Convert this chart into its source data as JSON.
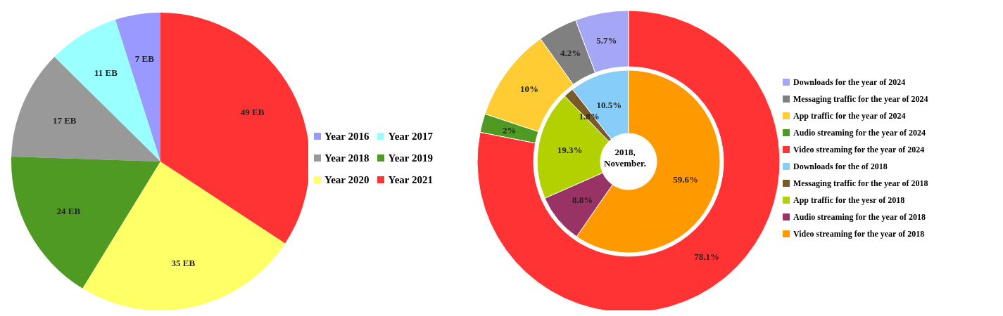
{
  "chart_data": [
    {
      "type": "pie",
      "categories": [
        "Year 2016",
        "Year 2017",
        "Year 2018",
        "Year 2019",
        "Year 2020",
        "Year 2021"
      ],
      "values": [
        7,
        11,
        17,
        24,
        35,
        49
      ],
      "value_labels": [
        "7 EB",
        "11 EB",
        "17 EB",
        "24 EB",
        "35 EB",
        "49 EB"
      ],
      "colors": [
        "#9999ff",
        "#99ffff",
        "#999999",
        "#4e9a22",
        "#ffff66",
        "#ff3333"
      ],
      "legend": "right"
    },
    {
      "type": "donut",
      "categories": [
        "Downloads for the year of 2024",
        "Messaging traffic for the year of 2024",
        "App traffic for the year of 2024",
        "Audio streaming for the year of 2024",
        "Video streaming for the year of 2024",
        "Downloads for the of 2018",
        "Messaging traffic for the year of 2018",
        "App traffic for the yesr of 2018",
        "Audio streaming for the year of 2018",
        "Video streaming for the year of 2018"
      ],
      "colors": [
        "#a6a6f6",
        "#808080",
        "#ffcc33",
        "#4e9a22",
        "#ff3333",
        "#87cdf9",
        "#7a5a2a",
        "#b3d100",
        "#993366",
        "#ff9900"
      ],
      "series": [
        {
          "values": [
            5.7,
            4.2,
            10,
            2,
            78.1,
            null,
            null,
            null,
            null,
            null
          ],
          "value_labels": [
            "5.7%",
            "4.2%",
            "10%",
            "2%",
            "78.1%",
            null,
            null,
            null,
            null,
            null
          ]
        },
        {
          "values": [
            null,
            null,
            null,
            null,
            null,
            10.5,
            1.8,
            19.3,
            8.8,
            59.6
          ],
          "value_labels": [
            null,
            null,
            null,
            null,
            null,
            "10.5%",
            "1.8%",
            "19.3%",
            "8.8%",
            "59.6%"
          ]
        }
      ],
      "annotations": [
        "2018, November."
      ],
      "legend": "right"
    }
  ]
}
